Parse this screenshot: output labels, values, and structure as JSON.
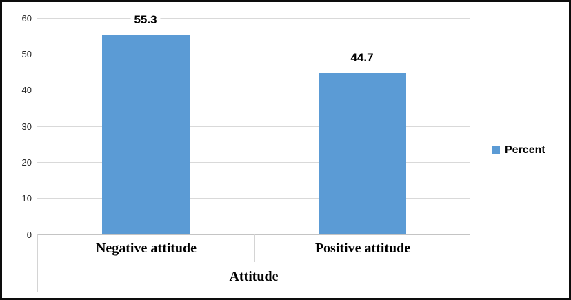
{
  "figure": {
    "background": "#FFFFFF",
    "border_color": "#0D0D0D"
  },
  "chart_data": {
    "type": "bar",
    "title": "",
    "categories": [
      "Negative attitude",
      "Positive attitude"
    ],
    "series": [
      {
        "name": "Percent",
        "values": [
          55.3,
          44.7
        ],
        "color": "#5B9BD5"
      }
    ],
    "data_labels": [
      "55.3",
      "44.7"
    ],
    "xlabel": "Attitude",
    "ylabel": "",
    "ylim": [
      0,
      60
    ],
    "yticks": [
      0,
      10,
      20,
      30,
      40,
      50,
      60
    ],
    "grid": true,
    "gridline_color": "#D9D9D9",
    "legend": {
      "position": "right",
      "entries": [
        {
          "label": "Percent",
          "color": "#5B9BD5"
        }
      ]
    }
  }
}
